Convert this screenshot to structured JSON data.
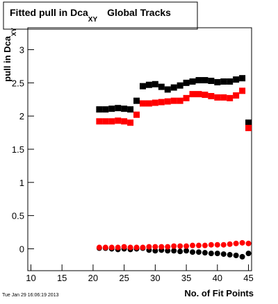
{
  "chart_data": {
    "type": "scatter",
    "title": {
      "text": "Fitted pull in Dca",
      "subscript": "XY",
      "suffix": "Global Tracks"
    },
    "y_label": {
      "text": "pull in Dca",
      "subscript": "XY"
    },
    "x_label": "No. of Fit Points",
    "timestamp": "Tue Jan 29 16:06:19 2013",
    "x": [
      21,
      22,
      23,
      24,
      25,
      26,
      27,
      28,
      29,
      30,
      31,
      32,
      33,
      34,
      35,
      36,
      37,
      38,
      39,
      40,
      41,
      42,
      43,
      44,
      45
    ],
    "series": [
      {
        "color": "#000000",
        "marker": "square",
        "values": [
          2.1,
          2.1,
          2.11,
          2.12,
          2.11,
          2.1,
          2.23,
          2.45,
          2.47,
          2.48,
          2.44,
          2.4,
          2.43,
          2.46,
          2.5,
          2.52,
          2.54,
          2.54,
          2.53,
          2.51,
          2.52,
          2.52,
          2.55,
          2.57,
          1.9
        ]
      },
      {
        "color": "#ff0000",
        "marker": "square",
        "values": [
          1.92,
          1.92,
          1.92,
          1.93,
          1.92,
          1.9,
          2.02,
          2.19,
          2.19,
          2.2,
          2.21,
          2.22,
          2.23,
          2.23,
          2.27,
          2.33,
          2.33,
          2.32,
          2.3,
          2.28,
          2.28,
          2.27,
          2.31,
          2.38,
          1.82
        ]
      },
      {
        "color": "#000000",
        "marker": "circle",
        "values": [
          0.01,
          0.01,
          0.0,
          -0.01,
          0.0,
          -0.01,
          0.0,
          0.01,
          -0.02,
          -0.03,
          -0.02,
          -0.03,
          -0.03,
          -0.04,
          -0.03,
          -0.05,
          -0.05,
          -0.06,
          -0.07,
          -0.07,
          -0.08,
          -0.09,
          -0.1,
          -0.12,
          -0.07
        ]
      },
      {
        "color": "#ff0000",
        "marker": "circle",
        "values": [
          0.02,
          0.02,
          0.02,
          0.02,
          0.03,
          0.02,
          0.02,
          0.02,
          0.03,
          0.03,
          0.03,
          0.03,
          0.04,
          0.04,
          0.04,
          0.05,
          0.05,
          0.05,
          0.06,
          0.06,
          0.06,
          0.07,
          0.08,
          0.09,
          0.08
        ]
      }
    ],
    "xlim": [
      9.5,
      45.5
    ],
    "xticks": [
      10,
      15,
      20,
      25,
      30,
      35,
      40,
      45
    ],
    "ylim": [
      -0.33,
      3.33
    ],
    "yticks": [
      0,
      0.5,
      1,
      1.5,
      2,
      2.5,
      3
    ],
    "grid": false
  }
}
